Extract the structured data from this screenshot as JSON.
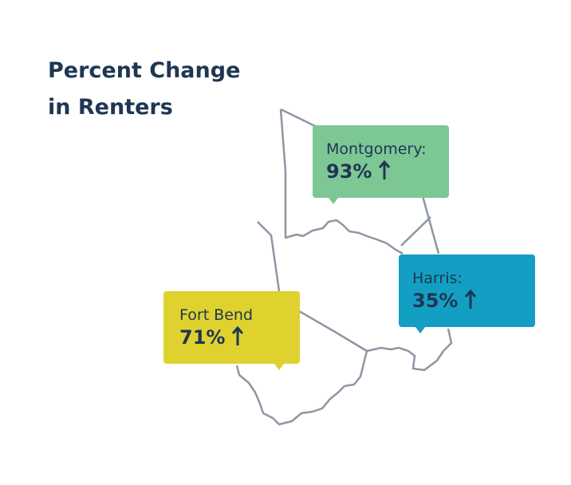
{
  "title": "Percent Change in Renters",
  "callouts": [
    {
      "name": "Montgomery:",
      "value": "93%"
    },
    {
      "name": "Harris:",
      "value": "35%"
    },
    {
      "name": "Fort Bend",
      "value": "71%"
    }
  ]
}
